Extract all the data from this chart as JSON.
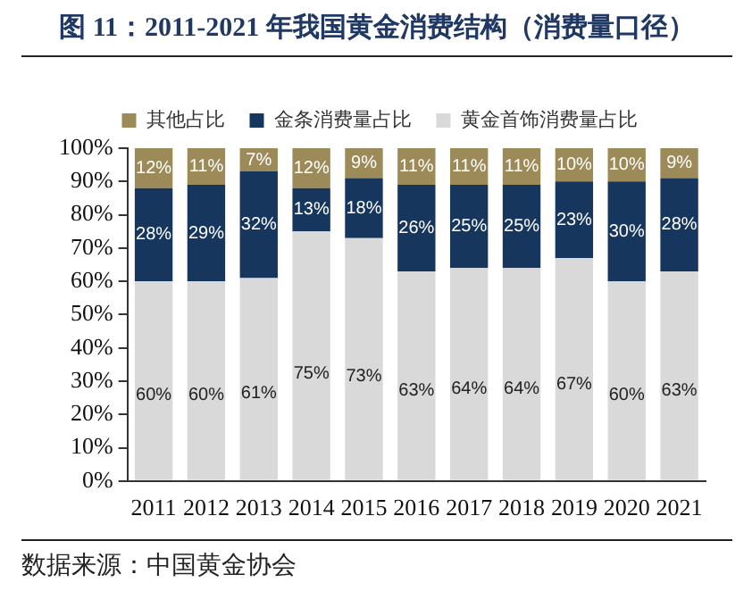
{
  "chart_data": {
    "type": "bar",
    "stacked": true,
    "title": "图 11：2011-2021 年我国黄金消费结构（消费量口径）",
    "categories": [
      "2011",
      "2012",
      "2013",
      "2014",
      "2015",
      "2016",
      "2017",
      "2018",
      "2019",
      "2020",
      "2021"
    ],
    "series": [
      {
        "name": "黄金首饰消费量占比",
        "color": "#d9d9d9",
        "values": [
          60,
          60,
          61,
          75,
          73,
          63,
          64,
          64,
          67,
          60,
          63
        ],
        "value_labels": [
          "60%",
          "60%",
          "61%",
          "75%",
          "73%",
          "63%",
          "64%",
          "64%",
          "67%",
          "60%",
          "63%"
        ]
      },
      {
        "name": "金条消费量占比",
        "color": "#17365d",
        "values": [
          28,
          29,
          32,
          13,
          18,
          26,
          25,
          25,
          23,
          30,
          28
        ],
        "value_labels": [
          "28%",
          "29%",
          "32%",
          "13%",
          "18%",
          "26%",
          "25%",
          "25%",
          "23%",
          "30%",
          "28%"
        ]
      },
      {
        "name": "其他占比",
        "color": "#9c8b58",
        "values": [
          12,
          11,
          7,
          12,
          9,
          11,
          11,
          11,
          10,
          10,
          9
        ],
        "value_labels": [
          "12%",
          "11%",
          "7%",
          "12%",
          "9%",
          "11%",
          "11%",
          "11%",
          "10%",
          "10%",
          "9%"
        ]
      }
    ],
    "ylim": [
      0,
      100
    ],
    "yticks": [
      {
        "value": 0,
        "label": "0%"
      },
      {
        "value": 10,
        "label": "10%"
      },
      {
        "value": 20,
        "label": "20%"
      },
      {
        "value": 30,
        "label": "30%"
      },
      {
        "value": 40,
        "label": "40%"
      },
      {
        "value": 50,
        "label": "50%"
      },
      {
        "value": 60,
        "label": "60%"
      },
      {
        "value": 70,
        "label": "70%"
      },
      {
        "value": 80,
        "label": "80%"
      },
      {
        "value": 90,
        "label": "90%"
      },
      {
        "value": 100,
        "label": "100%"
      }
    ],
    "grid": false,
    "legend": "top",
    "annotations": [
      "数据来源：中国黄金协会"
    ]
  }
}
